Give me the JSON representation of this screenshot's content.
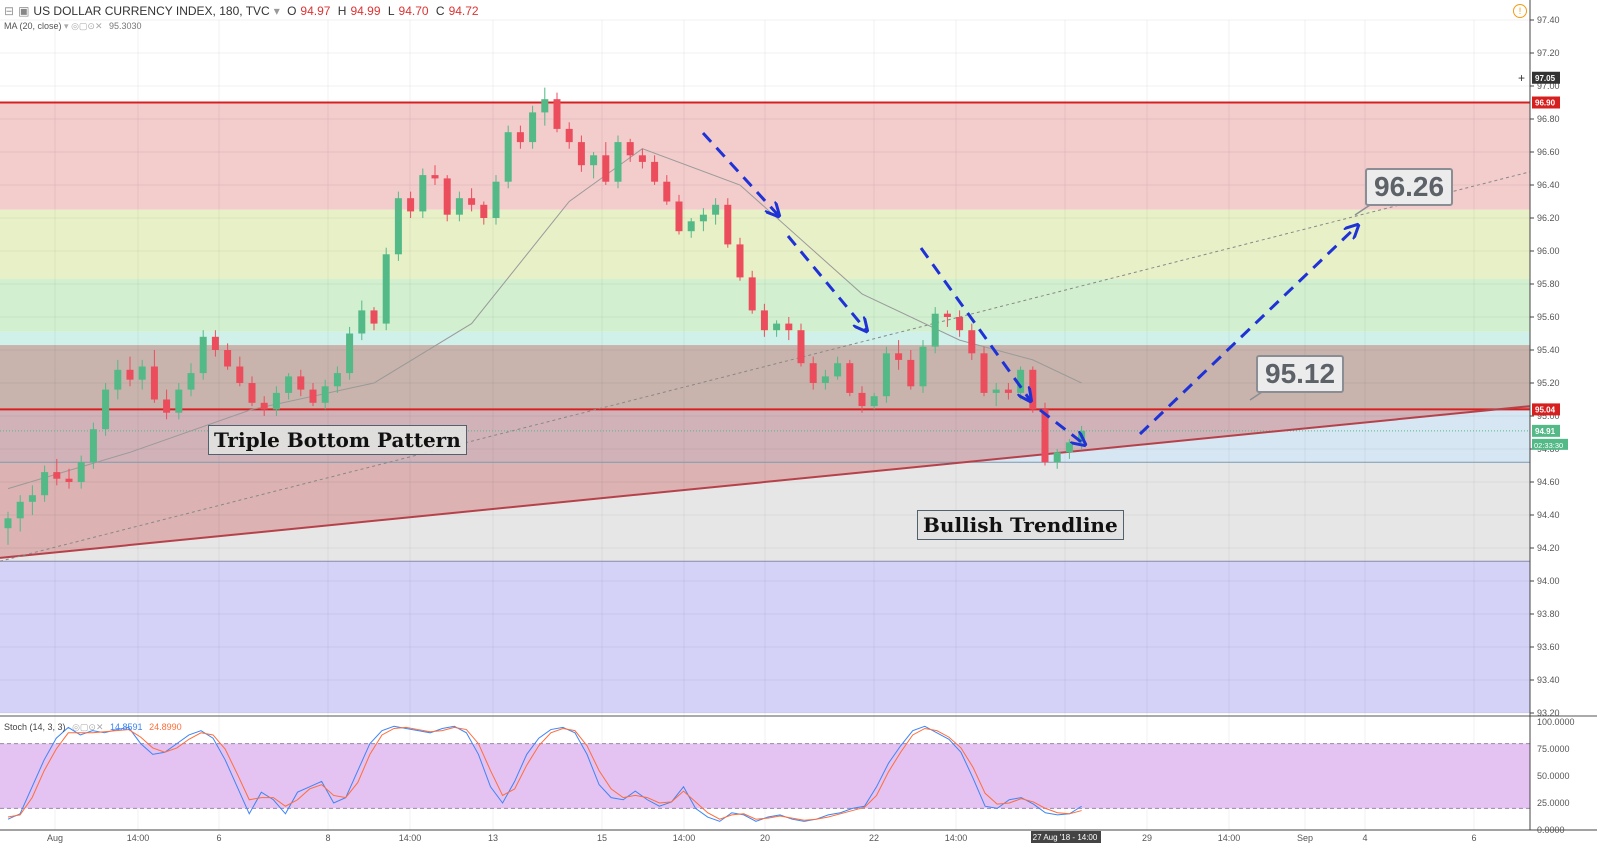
{
  "header": {
    "symbol": "US DOLLAR CURRENCY INDEX, 180, TVC",
    "open_label": "O",
    "open": "94.97",
    "high_label": "H",
    "high": "94.99",
    "low_label": "L",
    "low": "94.70",
    "close_label": "C",
    "close": "94.72",
    "ma_label": "MA (20, close)",
    "ma_value": "95.3030",
    "stoch_label": "Stoch (14, 3, 3)",
    "stoch_k": "14.8591",
    "stoch_d": "24.8990"
  },
  "annotations": {
    "triple_bottom": "Triple Bottom Pattern",
    "bullish_trendline": "Bullish Trendline",
    "target_high": "96.26",
    "target_mid": "95.12"
  },
  "price_tags": {
    "crosshair": "97.05",
    "upper_res": "96.90",
    "lower_res": "95.04",
    "last": "94.91",
    "countdown": "02:33:30"
  },
  "time_axis": {
    "labels": [
      "Aug",
      "14:00",
      "6",
      "8",
      "14:00",
      "13",
      "15",
      "14:00",
      "20",
      "22",
      "14:00",
      "27 Aug '18 - 14:00",
      "29",
      "14:00",
      "Sep",
      "4",
      "6"
    ]
  },
  "colors": {
    "up": "#53b987",
    "down": "#eb4d5c",
    "ma": "#9a9a9a",
    "stoch_k": "#3d85f5",
    "stoch_d": "#ff6d3a",
    "arrow": "#1f32d6",
    "resistance": "#d62020",
    "trendline": "#b5424a"
  },
  "chart_data": [
    {
      "type": "candlestick",
      "title": "US DOLLAR CURRENCY INDEX, 180, TVC",
      "ylim": [
        93.2,
        97.4
      ],
      "yticks": [
        93.2,
        93.4,
        93.6,
        93.8,
        94.0,
        94.2,
        94.4,
        94.6,
        94.8,
        95.0,
        95.2,
        95.4,
        95.6,
        95.8,
        96.0,
        96.2,
        96.4,
        96.6,
        96.8,
        97.0,
        97.2,
        97.4
      ],
      "horizontal_levels": [
        96.9,
        95.04
      ],
      "zones": [
        {
          "from": 96.25,
          "to": 96.9,
          "color": "#f3cccc"
        },
        {
          "from": 95.83,
          "to": 96.25,
          "color": "#e8f0c8"
        },
        {
          "from": 95.51,
          "to": 95.83,
          "color": "#d2f0d0"
        },
        {
          "from": 95.43,
          "to": 95.51,
          "color": "#d0f0ea"
        },
        {
          "from": 95.04,
          "to": 95.43,
          "color": "#c8b4ac"
        },
        {
          "from": 94.72,
          "to": 95.04,
          "color": "#d6e6f2"
        },
        {
          "from": 94.12,
          "to": 94.72,
          "color": "#e6e6e6"
        },
        {
          "from": 93.2,
          "to": 94.12,
          "color": "#d4d2f6"
        }
      ],
      "candles": [
        [
          94.32,
          94.42,
          94.22,
          94.38
        ],
        [
          94.38,
          94.52,
          94.3,
          94.48
        ],
        [
          94.48,
          94.58,
          94.4,
          94.52
        ],
        [
          94.52,
          94.7,
          94.48,
          94.66
        ],
        [
          94.66,
          94.74,
          94.58,
          94.62
        ],
        [
          94.62,
          94.68,
          94.56,
          94.6
        ],
        [
          94.6,
          94.76,
          94.56,
          94.72
        ],
        [
          94.72,
          94.96,
          94.68,
          94.92
        ],
        [
          94.92,
          95.2,
          94.88,
          95.16
        ],
        [
          95.16,
          95.34,
          95.1,
          95.28
        ],
        [
          95.28,
          95.36,
          95.18,
          95.22
        ],
        [
          95.22,
          95.34,
          95.16,
          95.3
        ],
        [
          95.3,
          95.4,
          95.08,
          95.1
        ],
        [
          95.1,
          95.16,
          94.98,
          95.02
        ],
        [
          95.02,
          95.2,
          94.98,
          95.16
        ],
        [
          95.16,
          95.32,
          95.12,
          95.26
        ],
        [
          95.26,
          95.52,
          95.22,
          95.48
        ],
        [
          95.48,
          95.52,
          95.36,
          95.4
        ],
        [
          95.4,
          95.44,
          95.28,
          95.3
        ],
        [
          95.3,
          95.36,
          95.18,
          95.2
        ],
        [
          95.2,
          95.24,
          95.06,
          95.08
        ],
        [
          95.08,
          95.12,
          95.0,
          95.04
        ],
        [
          95.04,
          95.18,
          95.0,
          95.14
        ],
        [
          95.14,
          95.26,
          95.1,
          95.24
        ],
        [
          95.24,
          95.28,
          95.12,
          95.16
        ],
        [
          95.16,
          95.2,
          95.06,
          95.08
        ],
        [
          95.08,
          95.22,
          95.04,
          95.18
        ],
        [
          95.18,
          95.3,
          95.14,
          95.26
        ],
        [
          95.26,
          95.54,
          95.22,
          95.5
        ],
        [
          95.5,
          95.7,
          95.46,
          95.64
        ],
        [
          95.64,
          95.66,
          95.52,
          95.56
        ],
        [
          95.56,
          96.02,
          95.52,
          95.98
        ],
        [
          95.98,
          96.36,
          95.94,
          96.32
        ],
        [
          96.32,
          96.36,
          96.2,
          96.24
        ],
        [
          96.24,
          96.5,
          96.2,
          96.46
        ],
        [
          96.46,
          96.52,
          96.4,
          96.44
        ],
        [
          96.44,
          96.46,
          96.18,
          96.22
        ],
        [
          96.22,
          96.36,
          96.18,
          96.32
        ],
        [
          96.32,
          96.38,
          96.24,
          96.28
        ],
        [
          96.28,
          96.3,
          96.16,
          96.2
        ],
        [
          96.2,
          96.46,
          96.16,
          96.42
        ],
        [
          96.42,
          96.76,
          96.38,
          96.72
        ],
        [
          96.72,
          96.76,
          96.62,
          96.66
        ],
        [
          96.66,
          96.88,
          96.62,
          96.84
        ],
        [
          96.84,
          96.99,
          96.76,
          96.92
        ],
        [
          96.92,
          96.96,
          96.72,
          96.74
        ],
        [
          96.74,
          96.78,
          96.62,
          96.66
        ],
        [
          96.66,
          96.7,
          96.48,
          96.52
        ],
        [
          96.52,
          96.6,
          96.44,
          96.58
        ],
        [
          96.58,
          96.66,
          96.4,
          96.42
        ],
        [
          96.42,
          96.7,
          96.38,
          96.66
        ],
        [
          96.66,
          96.68,
          96.54,
          96.58
        ],
        [
          96.58,
          96.62,
          96.5,
          96.54
        ],
        [
          96.54,
          96.58,
          96.4,
          96.42
        ],
        [
          96.42,
          96.46,
          96.28,
          96.3
        ],
        [
          96.3,
          96.34,
          96.1,
          96.12
        ],
        [
          96.12,
          96.2,
          96.08,
          96.18
        ],
        [
          96.18,
          96.26,
          96.12,
          96.22
        ],
        [
          96.22,
          96.32,
          96.16,
          96.28
        ],
        [
          96.28,
          96.32,
          96.02,
          96.04
        ],
        [
          96.04,
          96.08,
          95.82,
          95.84
        ],
        [
          95.84,
          95.88,
          95.62,
          95.64
        ],
        [
          95.64,
          95.68,
          95.48,
          95.52
        ],
        [
          95.52,
          95.58,
          95.48,
          95.56
        ],
        [
          95.56,
          95.6,
          95.46,
          95.52
        ],
        [
          95.52,
          95.56,
          95.3,
          95.32
        ],
        [
          95.32,
          95.36,
          95.16,
          95.2
        ],
        [
          95.2,
          95.28,
          95.16,
          95.24
        ],
        [
          95.24,
          95.36,
          95.22,
          95.32
        ],
        [
          95.32,
          95.34,
          95.12,
          95.14
        ],
        [
          95.14,
          95.18,
          95.02,
          95.06
        ],
        [
          95.06,
          95.14,
          95.04,
          95.12
        ],
        [
          95.12,
          95.42,
          95.08,
          95.38
        ],
        [
          95.38,
          95.46,
          95.28,
          95.34
        ],
        [
          95.34,
          95.4,
          95.16,
          95.18
        ],
        [
          95.18,
          95.46,
          95.14,
          95.42
        ],
        [
          95.42,
          95.66,
          95.38,
          95.62
        ],
        [
          95.62,
          95.64,
          95.54,
          95.6
        ],
        [
          95.6,
          95.64,
          95.48,
          95.52
        ],
        [
          95.52,
          95.56,
          95.34,
          95.38
        ],
        [
          95.38,
          95.42,
          95.12,
          95.14
        ],
        [
          95.14,
          95.2,
          95.06,
          95.16
        ],
        [
          95.16,
          95.2,
          95.1,
          95.14
        ],
        [
          95.14,
          95.3,
          95.1,
          95.28
        ],
        [
          95.28,
          95.3,
          95.02,
          95.04
        ],
        [
          95.04,
          95.08,
          94.7,
          94.72
        ],
        [
          94.72,
          94.8,
          94.68,
          94.78
        ],
        [
          94.78,
          94.86,
          94.74,
          94.84
        ],
        [
          94.84,
          94.94,
          94.8,
          94.91
        ]
      ],
      "moving_average": {
        "name": "MA (20, close)",
        "points": [
          [
            0,
            94.56
          ],
          [
            10,
            94.78
          ],
          [
            20,
            95.04
          ],
          [
            30,
            95.2
          ],
          [
            38,
            95.56
          ],
          [
            46,
            96.3
          ],
          [
            52,
            96.62
          ],
          [
            60,
            96.4
          ],
          [
            70,
            95.74
          ],
          [
            78,
            95.46
          ],
          [
            84,
            95.34
          ],
          [
            88,
            95.2
          ]
        ]
      }
    },
    {
      "type": "line",
      "title": "Stoch (14, 3, 3)",
      "ylim": [
        0,
        100
      ],
      "yticks": [
        0,
        25,
        50,
        75,
        100
      ],
      "bands": [
        20,
        80
      ],
      "series": [
        {
          "name": "%K",
          "values": [
            10,
            15,
            40,
            65,
            85,
            95,
            88,
            92,
            90,
            93,
            95,
            80,
            70,
            72,
            80,
            88,
            92,
            85,
            65,
            40,
            15,
            35,
            28,
            15,
            35,
            40,
            45,
            25,
            30,
            55,
            80,
            92,
            96,
            94,
            92,
            90,
            94,
            96,
            90,
            70,
            40,
            25,
            45,
            70,
            85,
            93,
            95,
            90,
            70,
            42,
            30,
            28,
            36,
            28,
            22,
            26,
            40,
            20,
            12,
            8,
            16,
            14,
            8,
            12,
            14,
            10,
            8,
            10,
            14,
            16,
            20,
            22,
            40,
            62,
            78,
            92,
            96,
            90,
            84,
            72,
            48,
            22,
            20,
            28,
            30,
            24,
            16,
            14,
            15,
            22
          ]
        },
        {
          "name": "%D",
          "values": [
            12,
            14,
            30,
            55,
            75,
            90,
            90,
            90,
            91,
            92,
            93,
            86,
            76,
            72,
            76,
            84,
            90,
            88,
            75,
            52,
            28,
            30,
            30,
            22,
            28,
            38,
            42,
            32,
            30,
            44,
            70,
            88,
            94,
            95,
            93,
            91,
            92,
            95,
            93,
            80,
            55,
            32,
            38,
            60,
            78,
            90,
            94,
            92,
            78,
            55,
            38,
            30,
            32,
            30,
            25,
            26,
            36,
            26,
            16,
            10,
            14,
            15,
            10,
            11,
            13,
            11,
            9,
            10,
            12,
            15,
            18,
            21,
            32,
            54,
            72,
            88,
            94,
            92,
            86,
            76,
            58,
            34,
            24,
            25,
            29,
            26,
            20,
            16,
            15,
            18
          ]
        }
      ]
    }
  ]
}
